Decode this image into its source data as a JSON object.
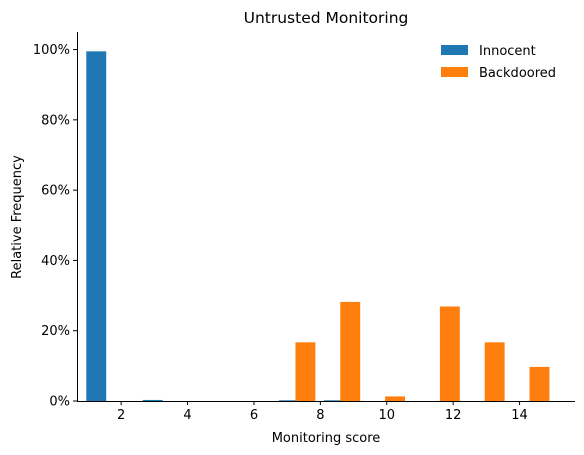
{
  "chart_data": {
    "type": "bar",
    "title": "Untrusted Monitoring",
    "xlabel": "Monitoring score",
    "ylabel": "Relative Frequency",
    "xlim": [
      0.67,
      15.67
    ],
    "ylim": [
      0,
      1.05
    ],
    "xticks": [
      2,
      4,
      6,
      8,
      10,
      12,
      14
    ],
    "yticks": [
      0,
      0.2,
      0.4,
      0.6,
      0.8,
      1.0
    ],
    "ytick_labels": [
      "0%",
      "20%",
      "40%",
      "60%",
      "80%",
      "100%"
    ],
    "bar_width": 0.6,
    "grid": false,
    "legend_position": "top-right",
    "series": [
      {
        "name": "Innocent",
        "color": "#1f77b4",
        "points": [
          {
            "x": 1.25,
            "y": 0.995
          },
          {
            "x": 2.95,
            "y": 0.003
          },
          {
            "x": 7.05,
            "y": 0.002
          },
          {
            "x": 8.4,
            "y": 0.002
          }
        ]
      },
      {
        "name": "Backdoored",
        "color": "#ff7f0e",
        "points": [
          {
            "x": 7.55,
            "y": 0.167
          },
          {
            "x": 8.9,
            "y": 0.282
          },
          {
            "x": 10.25,
            "y": 0.013
          },
          {
            "x": 11.9,
            "y": 0.269
          },
          {
            "x": 13.25,
            "y": 0.167
          },
          {
            "x": 14.6,
            "y": 0.097
          }
        ]
      }
    ]
  }
}
